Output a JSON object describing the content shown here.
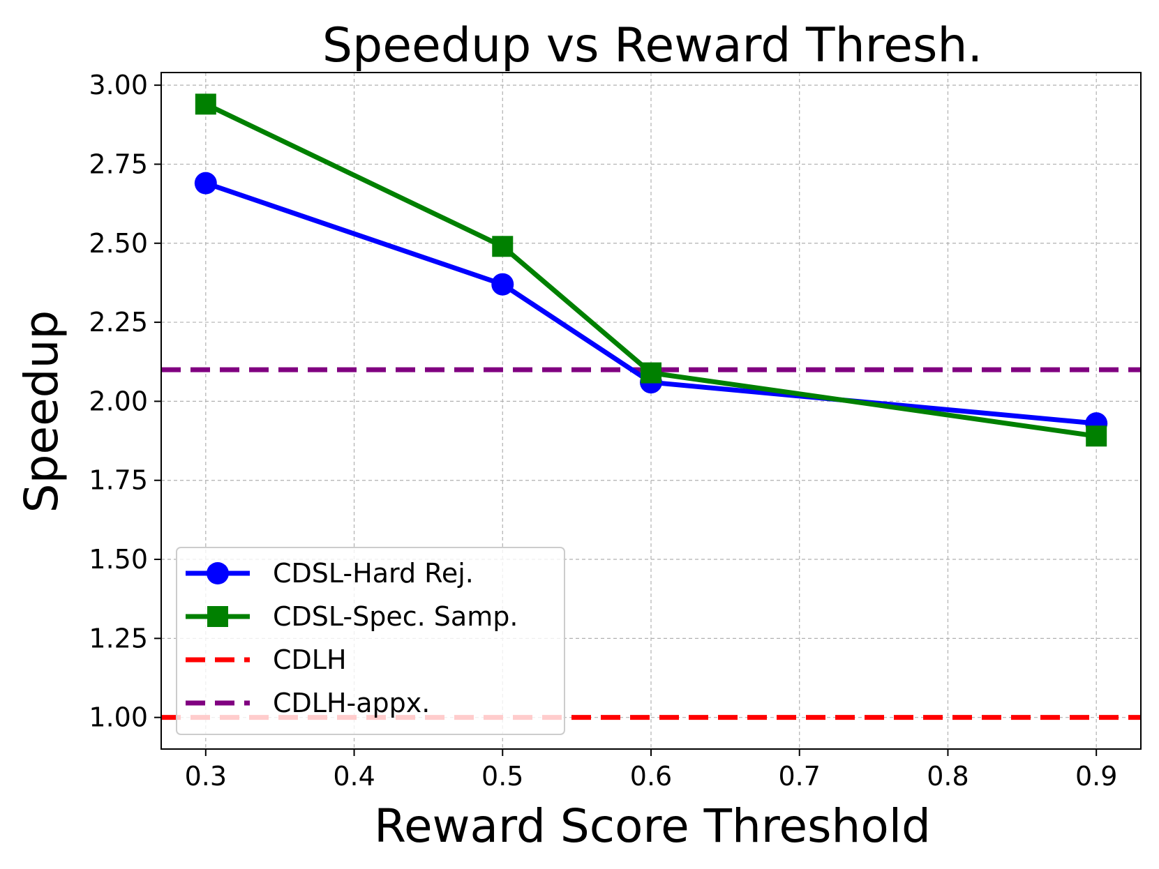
{
  "chart_data": {
    "type": "line",
    "title": "Speedup vs Reward Thresh.",
    "xlabel": "Reward Score Threshold",
    "ylabel": "Speedup",
    "xlim": [
      0.27,
      0.93
    ],
    "ylim": [
      0.9,
      3.04
    ],
    "xticks": [
      0.3,
      0.4,
      0.5,
      0.6,
      0.7,
      0.8,
      0.9
    ],
    "xtick_labels": [
      "0.3",
      "0.4",
      "0.5",
      "0.6",
      "0.7",
      "0.8",
      "0.9"
    ],
    "yticks": [
      1.0,
      1.25,
      1.5,
      1.75,
      2.0,
      2.25,
      2.5,
      2.75,
      3.0
    ],
    "ytick_labels": [
      "1.00",
      "1.25",
      "1.50",
      "1.75",
      "2.00",
      "2.25",
      "2.50",
      "2.75",
      "3.00"
    ],
    "grid": true,
    "legend_position": "bottom-left",
    "series": [
      {
        "name": "CDSL-Hard Rej.",
        "kind": "line",
        "marker": "circle",
        "color": "#0000ff",
        "x": [
          0.3,
          0.5,
          0.6,
          0.9
        ],
        "values": [
          2.69,
          2.37,
          2.06,
          1.93
        ]
      },
      {
        "name": "CDSL-Spec. Samp.",
        "kind": "line",
        "marker": "square",
        "color": "#008000",
        "x": [
          0.3,
          0.5,
          0.6,
          0.9
        ],
        "values": [
          2.94,
          2.49,
          2.09,
          1.89
        ]
      },
      {
        "name": "CDLH",
        "kind": "hline",
        "style": "dashed",
        "color": "#ff0000",
        "value": 1.0
      },
      {
        "name": "CDLH-appx.",
        "kind": "hline",
        "style": "dashed",
        "color": "#800080",
        "value": 2.1
      }
    ]
  }
}
